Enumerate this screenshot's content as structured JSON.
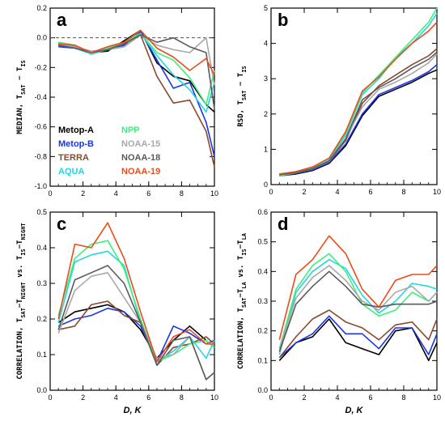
{
  "series_colors": {
    "Metop-A": "#000000",
    "Metop-B": "#1a35e8",
    "TERRA": "#8a4a2e",
    "AQUA": "#22d6e6",
    "NPP": "#3df07a",
    "NOAA-15": "#a8a8a8",
    "NOAA-18": "#5a5a5a",
    "NOAA-19": "#ee4a1a"
  },
  "chart_data": [
    {
      "type": "line",
      "panel_label": "a",
      "ylabel": "MEDIAN, T_SAT − T_IS",
      "xlabel": "",
      "xlim": [
        0,
        10
      ],
      "ylim": [
        -1.0,
        0.2
      ],
      "xticks": [
        "0",
        "2",
        "4",
        "6",
        "8",
        "10"
      ],
      "yticks": [
        "-1.0",
        "-0.8",
        "-0.6",
        "-0.4",
        "-0.2",
        "0.0",
        "0.2"
      ],
      "reference_line_y": 0,
      "x": [
        0.5,
        1.5,
        2.5,
        3.5,
        4.5,
        5.5,
        6.5,
        7.5,
        8.5,
        9.5,
        10
      ],
      "series": [
        {
          "name": "Metop-A",
          "values": [
            -0.05,
            -0.06,
            -0.1,
            -0.09,
            -0.02,
            0.05,
            -0.17,
            -0.26,
            -0.29,
            -0.45,
            -0.5
          ]
        },
        {
          "name": "Metop-B",
          "values": [
            -0.06,
            -0.07,
            -0.1,
            -0.08,
            -0.05,
            0.04,
            -0.15,
            -0.34,
            -0.3,
            -0.57,
            -0.8
          ]
        },
        {
          "name": "TERRA",
          "values": [
            -0.04,
            -0.06,
            -0.1,
            -0.08,
            -0.06,
            0.02,
            -0.26,
            -0.44,
            -0.42,
            -0.63,
            -0.87
          ]
        },
        {
          "name": "AQUA",
          "values": [
            -0.04,
            -0.07,
            -0.11,
            -0.08,
            -0.04,
            0.03,
            -0.12,
            -0.25,
            -0.35,
            -0.5,
            -0.3
          ]
        },
        {
          "name": "NPP",
          "values": [
            -0.03,
            -0.05,
            -0.1,
            -0.07,
            -0.03,
            0.03,
            -0.1,
            -0.15,
            -0.27,
            -0.45,
            -0.22
          ]
        },
        {
          "name": "NOAA-15",
          "values": [
            -0.04,
            -0.06,
            -0.09,
            -0.08,
            -0.06,
            0.02,
            -0.05,
            -0.08,
            -0.1,
            0.0,
            -0.32
          ]
        },
        {
          "name": "NOAA-18",
          "values": [
            -0.05,
            -0.07,
            -0.1,
            -0.08,
            -0.04,
            0.02,
            -0.03,
            0.0,
            -0.06,
            -0.1,
            -0.48
          ]
        },
        {
          "name": "NOAA-19",
          "values": [
            -0.04,
            -0.05,
            -0.1,
            -0.06,
            -0.03,
            0.05,
            -0.07,
            -0.13,
            -0.22,
            -0.14,
            -0.25
          ]
        }
      ]
    },
    {
      "type": "line",
      "panel_label": "b",
      "ylabel": "RSD, T_SAT − T_IS",
      "xlabel": "",
      "xlim": [
        0,
        10
      ],
      "ylim": [
        0,
        5
      ],
      "xticks": [
        "0",
        "2",
        "4",
        "6",
        "8",
        "10"
      ],
      "yticks": [
        "0",
        "1",
        "2",
        "3",
        "4",
        "5"
      ],
      "x": [
        0.5,
        1.5,
        2.5,
        3.5,
        4.5,
        5.5,
        6.5,
        7.5,
        8.5,
        9.5,
        10
      ],
      "series": [
        {
          "name": "Metop-A",
          "values": [
            0.25,
            0.3,
            0.4,
            0.6,
            1.1,
            1.95,
            2.5,
            2.7,
            2.9,
            3.15,
            3.25
          ]
        },
        {
          "name": "Metop-B",
          "values": [
            0.25,
            0.32,
            0.42,
            0.62,
            1.15,
            2.0,
            2.55,
            2.75,
            2.95,
            3.2,
            3.4
          ]
        },
        {
          "name": "TERRA",
          "values": [
            0.3,
            0.35,
            0.45,
            0.65,
            1.25,
            2.3,
            2.8,
            3.1,
            3.4,
            3.65,
            3.85
          ]
        },
        {
          "name": "AQUA",
          "values": [
            0.25,
            0.33,
            0.45,
            0.7,
            1.4,
            2.55,
            3.0,
            3.6,
            4.0,
            4.5,
            4.85
          ]
        },
        {
          "name": "NPP",
          "values": [
            0.25,
            0.35,
            0.48,
            0.75,
            1.45,
            2.6,
            3.1,
            3.6,
            4.1,
            4.6,
            5.0
          ]
        },
        {
          "name": "NOAA-15",
          "values": [
            0.28,
            0.34,
            0.44,
            0.66,
            1.3,
            2.2,
            2.7,
            2.9,
            3.15,
            3.45,
            3.7
          ]
        },
        {
          "name": "NOAA-18",
          "values": [
            0.28,
            0.34,
            0.45,
            0.67,
            1.3,
            2.4,
            2.75,
            3.0,
            3.3,
            3.55,
            3.75
          ]
        },
        {
          "name": "NOAA-19",
          "values": [
            0.3,
            0.37,
            0.5,
            0.75,
            1.5,
            2.65,
            3.05,
            3.55,
            4.0,
            4.35,
            4.6
          ]
        }
      ]
    },
    {
      "type": "line",
      "panel_label": "c",
      "ylabel": "CORRELATION, T_SAT−T_NIGHT vs. T_IS−T_NIGHT",
      "xlabel": "D, K",
      "xlim": [
        0,
        10
      ],
      "ylim": [
        0,
        0.5
      ],
      "xticks": [
        "0",
        "2",
        "4",
        "6",
        "8",
        "10"
      ],
      "yticks": [
        "0.0",
        "0.1",
        "0.2",
        "0.3",
        "0.4",
        "0.5"
      ],
      "x": [
        0.5,
        1.5,
        2.5,
        3.5,
        4.5,
        5.5,
        6.5,
        7.5,
        8.5,
        9.5,
        10
      ],
      "series": [
        {
          "name": "Metop-A",
          "values": [
            0.19,
            0.22,
            0.23,
            0.24,
            0.22,
            0.17,
            0.09,
            0.14,
            0.18,
            0.14,
            0.12
          ]
        },
        {
          "name": "Metop-B",
          "values": [
            0.18,
            0.2,
            0.21,
            0.23,
            0.22,
            0.18,
            0.08,
            0.18,
            0.16,
            0.13,
            0.14
          ]
        },
        {
          "name": "TERRA",
          "values": [
            0.17,
            0.18,
            0.24,
            0.25,
            0.21,
            0.19,
            0.07,
            0.12,
            0.13,
            0.15,
            0.13
          ]
        },
        {
          "name": "AQUA",
          "values": [
            0.19,
            0.36,
            0.38,
            0.39,
            0.35,
            0.19,
            0.08,
            0.11,
            0.15,
            0.09,
            0.14
          ]
        },
        {
          "name": "NPP",
          "values": [
            0.21,
            0.37,
            0.41,
            0.42,
            0.34,
            0.2,
            0.08,
            0.1,
            0.13,
            0.14,
            0.12
          ]
        },
        {
          "name": "NOAA-15",
          "values": [
            0.16,
            0.28,
            0.32,
            0.33,
            0.26,
            0.19,
            0.09,
            0.1,
            0.15,
            0.03,
            0.05
          ]
        },
        {
          "name": "NOAA-18",
          "values": [
            0.17,
            0.31,
            0.33,
            0.35,
            0.3,
            0.19,
            0.07,
            0.14,
            0.15,
            0.03,
            0.05
          ]
        },
        {
          "name": "NOAA-19",
          "values": [
            0.2,
            0.41,
            0.4,
            0.47,
            0.37,
            0.22,
            0.08,
            0.15,
            0.17,
            0.13,
            0.13
          ]
        }
      ]
    },
    {
      "type": "line",
      "panel_label": "d",
      "ylabel": "CORRELATION, T_SAT−T_LA vs. T_IS−T_LA",
      "xlabel": "D, K",
      "xlim": [
        0,
        10
      ],
      "ylim": [
        0,
        0.6
      ],
      "xticks": [
        "0",
        "2",
        "4",
        "6",
        "8",
        "10"
      ],
      "yticks": [
        "0.0",
        "0.1",
        "0.2",
        "0.3",
        "0.4",
        "0.5",
        "0.6"
      ],
      "x": [
        0.5,
        1.5,
        2.5,
        3.5,
        4.5,
        5.5,
        6.5,
        7.5,
        8.5,
        9.5,
        10
      ],
      "series": [
        {
          "name": "Metop-A",
          "values": [
            0.1,
            0.16,
            0.18,
            0.24,
            0.16,
            0.14,
            0.12,
            0.2,
            0.21,
            0.1,
            0.16
          ]
        },
        {
          "name": "Metop-B",
          "values": [
            0.11,
            0.16,
            0.19,
            0.25,
            0.19,
            0.19,
            0.14,
            0.21,
            0.21,
            0.12,
            0.19
          ]
        },
        {
          "name": "TERRA",
          "values": [
            0.11,
            0.18,
            0.24,
            0.27,
            0.23,
            0.21,
            0.17,
            0.22,
            0.23,
            0.17,
            0.24
          ]
        },
        {
          "name": "AQUA",
          "values": [
            0.12,
            0.33,
            0.4,
            0.44,
            0.41,
            0.32,
            0.26,
            0.3,
            0.36,
            0.35,
            0.34
          ]
        },
        {
          "name": "NPP",
          "values": [
            0.14,
            0.34,
            0.42,
            0.46,
            0.4,
            0.29,
            0.25,
            0.27,
            0.33,
            0.3,
            0.33
          ]
        },
        {
          "name": "NOAA-15",
          "values": [
            0.14,
            0.31,
            0.38,
            0.42,
            0.37,
            0.3,
            0.27,
            0.33,
            0.35,
            0.3,
            0.33
          ]
        },
        {
          "name": "NOAA-18",
          "values": [
            0.13,
            0.29,
            0.35,
            0.4,
            0.35,
            0.29,
            0.28,
            0.29,
            0.29,
            0.29,
            0.3
          ]
        },
        {
          "name": "NOAA-19",
          "values": [
            0.17,
            0.39,
            0.44,
            0.52,
            0.46,
            0.34,
            0.28,
            0.37,
            0.39,
            0.39,
            0.42
          ]
        }
      ]
    }
  ],
  "legend": {
    "left_column": [
      "Metop-A",
      "Metop-B",
      "TERRA",
      "AQUA"
    ],
    "right_column": [
      "NPP",
      "NOAA-15",
      "NOAA-18",
      "NOAA-19"
    ]
  }
}
